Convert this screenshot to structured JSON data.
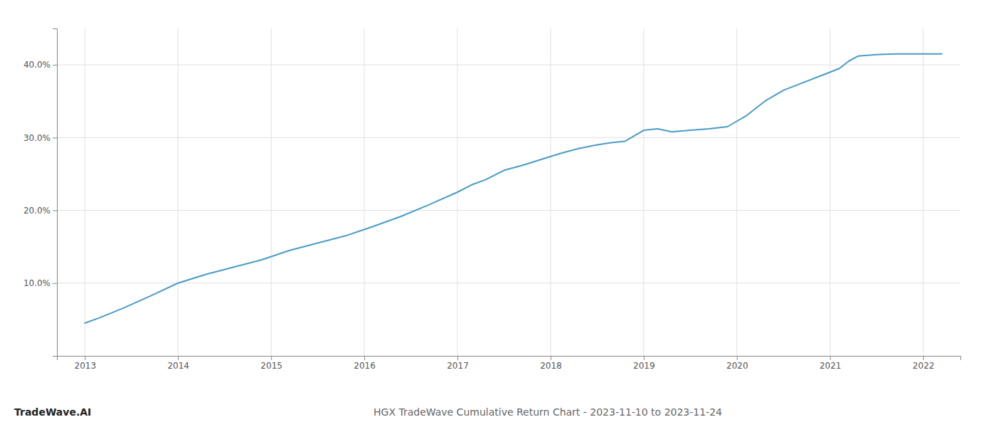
{
  "chart_data": {
    "type": "line",
    "title": "HGX TradeWave Cumulative Return Chart - 2023-11-10 to 2023-11-24",
    "annotations": [
      "TradeWave.AI"
    ],
    "color": "#4a9cc5",
    "grid": true,
    "x": [
      2013.0,
      2013.15,
      2013.4,
      2013.7,
      2014.0,
      2014.3,
      2014.6,
      2014.9,
      2015.2,
      2015.5,
      2015.8,
      2016.1,
      2016.4,
      2016.7,
      2017.0,
      2017.15,
      2017.3,
      2017.5,
      2017.7,
      2017.9,
      2018.1,
      2018.3,
      2018.5,
      2018.65,
      2018.8,
      2019.0,
      2019.15,
      2019.3,
      2019.5,
      2019.7,
      2019.9,
      2020.1,
      2020.3,
      2020.5,
      2020.7,
      2020.9,
      2021.1,
      2021.2,
      2021.3,
      2021.5,
      2021.7,
      2022.0,
      2022.2
    ],
    "values": [
      4.5,
      5.2,
      6.5,
      8.2,
      10.0,
      11.2,
      12.2,
      13.2,
      14.5,
      15.5,
      16.5,
      17.8,
      19.2,
      20.8,
      22.5,
      23.5,
      24.2,
      25.5,
      26.2,
      27.0,
      27.8,
      28.5,
      29.0,
      29.3,
      29.5,
      31.0,
      31.2,
      30.8,
      31.0,
      31.2,
      31.5,
      33.0,
      35.0,
      36.5,
      37.5,
      38.5,
      39.5,
      40.5,
      41.2,
      41.4,
      41.5,
      41.5,
      41.5
    ],
    "xlim": [
      2012.7,
      2022.4
    ],
    "ylim": [
      0,
      45
    ],
    "xticks": [
      2013,
      2014,
      2015,
      2016,
      2017,
      2018,
      2019,
      2020,
      2021,
      2022
    ],
    "yticks": [
      {
        "value": 10.0,
        "label": "10.0%"
      },
      {
        "value": 20.0,
        "label": "20.0%"
      },
      {
        "value": 30.0,
        "label": "30.0%"
      },
      {
        "value": 40.0,
        "label": "40.0%"
      }
    ]
  }
}
